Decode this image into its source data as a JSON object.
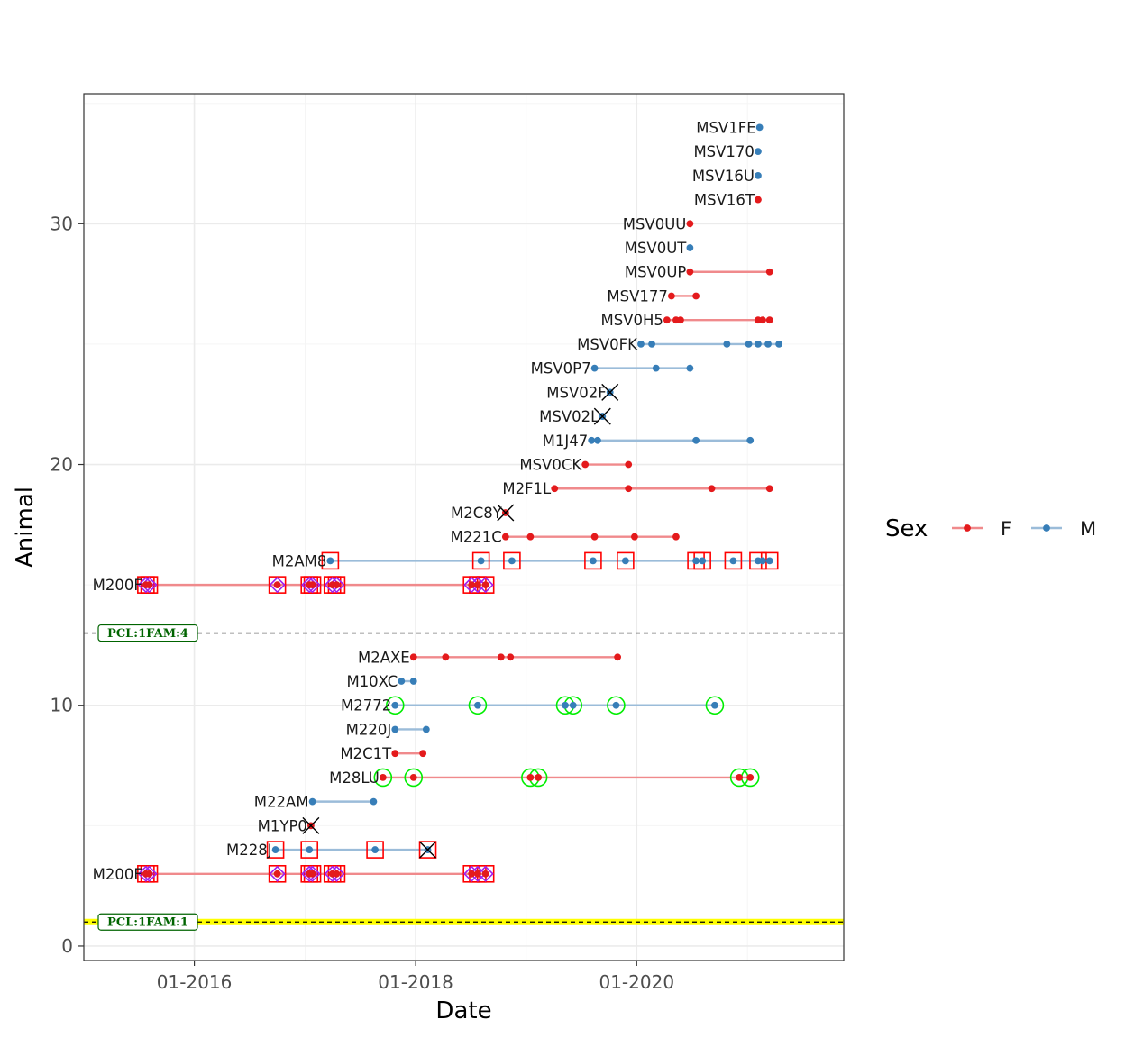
{
  "chart_data": {
    "type": "scatter",
    "xlabel": "Date",
    "ylabel": "Animal",
    "xlim": [
      "2015-01-01",
      "2021-11-15"
    ],
    "ylim": [
      -0.6,
      35.4
    ],
    "x_ticks": [
      {
        "date": "2016-01-01",
        "label": "01-2016"
      },
      {
        "date": "2018-01-01",
        "label": "01-2018"
      },
      {
        "date": "2020-01-01",
        "label": "01-2020"
      }
    ],
    "y_ticks": [
      {
        "value": 0,
        "label": "0"
      },
      {
        "value": 10,
        "label": "10"
      },
      {
        "value": 20,
        "label": "20"
      },
      {
        "value": 30,
        "label": "30"
      }
    ],
    "grid": true,
    "legend": {
      "title": "Sex",
      "position": "right",
      "items": [
        {
          "label": "F",
          "color": "#e41a1c"
        },
        {
          "label": "M",
          "color": "#377eb8"
        }
      ]
    },
    "separators": [
      {
        "y": 1,
        "label": "PCL:1FAM:1",
        "highlight_color": "#ffff00"
      },
      {
        "y": 13,
        "label": "PCL:1FAM:4"
      }
    ],
    "animals": [
      {
        "y": 3,
        "label": "M200F",
        "sex": "F",
        "dates": [
          "2015-07-25",
          "2015-08-05",
          "2016-10-01",
          "2017-01-15",
          "2017-01-25",
          "2017-04-01",
          "2017-04-15",
          "2018-07-05",
          "2018-07-25",
          "2018-08-20"
        ],
        "boxed": [
          "2015-07-25",
          "2015-08-05",
          "2016-10-01",
          "2017-01-15",
          "2017-01-25",
          "2017-04-01",
          "2017-04-15",
          "2018-07-05",
          "2018-07-25",
          "2018-08-20"
        ],
        "diamond": [
          "2015-07-25",
          "2015-08-05",
          "2016-10-01",
          "2017-01-15",
          "2017-01-25",
          "2017-04-01",
          "2017-04-15",
          "2018-07-05",
          "2018-07-25",
          "2018-08-20"
        ],
        "circled": [],
        "crossed": []
      },
      {
        "y": 4,
        "label": "M228J",
        "sex": "M",
        "dates": [
          "2016-09-25",
          "2017-01-15",
          "2017-08-20",
          "2018-02-10"
        ],
        "boxed": [
          "2016-09-25",
          "2017-01-15",
          "2017-08-20",
          "2018-02-10"
        ],
        "diamond": [],
        "circled": [],
        "crossed": [
          "2018-02-10"
        ]
      },
      {
        "y": 5,
        "label": "M1YP0",
        "sex": "F",
        "dates": [
          "2017-01-20"
        ],
        "boxed": [],
        "diamond": [],
        "circled": [],
        "crossed": [
          "2017-01-20"
        ]
      },
      {
        "y": 6,
        "label": "M22AM",
        "sex": "M",
        "dates": [
          "2017-01-25",
          "2017-08-15"
        ],
        "boxed": [],
        "diamond": [],
        "circled": [],
        "crossed": []
      },
      {
        "y": 7,
        "label": "M28LU",
        "sex": "F",
        "dates": [
          "2017-09-15",
          "2017-12-25",
          "2019-01-15",
          "2019-02-10",
          "2020-12-05",
          "2021-01-10"
        ],
        "boxed": [],
        "diamond": [],
        "circled": [
          "2017-09-15",
          "2017-12-25",
          "2019-01-15",
          "2019-02-10",
          "2020-12-05",
          "2021-01-10"
        ],
        "crossed": []
      },
      {
        "y": 8,
        "label": "M2C1T",
        "sex": "F",
        "dates": [
          "2017-10-25",
          "2018-01-25"
        ],
        "boxed": [],
        "diamond": [],
        "circled": [],
        "crossed": []
      },
      {
        "y": 9,
        "label": "M220J",
        "sex": "M",
        "dates": [
          "2017-10-25",
          "2018-02-05"
        ],
        "boxed": [],
        "diamond": [],
        "circled": [],
        "crossed": []
      },
      {
        "y": 10,
        "label": "M2772",
        "sex": "M",
        "dates": [
          "2017-10-25",
          "2018-07-25",
          "2019-05-10",
          "2019-06-05",
          "2019-10-25",
          "2020-09-15"
        ],
        "boxed": [],
        "diamond": [],
        "circled": [
          "2017-10-25",
          "2018-07-25",
          "2019-05-10",
          "2019-06-05",
          "2019-10-25",
          "2020-09-15"
        ],
        "crossed": []
      },
      {
        "y": 11,
        "label": "M10XC",
        "sex": "M",
        "dates": [
          "2017-11-15",
          "2017-12-25"
        ],
        "boxed": [],
        "diamond": [],
        "circled": [],
        "crossed": []
      },
      {
        "y": 12,
        "label": "M2AXE",
        "sex": "F",
        "dates": [
          "2017-12-25",
          "2018-04-10",
          "2018-10-10",
          "2018-11-10",
          "2019-10-30"
        ],
        "boxed": [],
        "diamond": [],
        "circled": [],
        "crossed": []
      },
      {
        "y": 15,
        "label": "M200F",
        "sex": "F",
        "dates": [
          "2015-07-25",
          "2015-08-05",
          "2016-10-01",
          "2017-01-15",
          "2017-01-25",
          "2017-04-01",
          "2017-04-15",
          "2018-07-05",
          "2018-07-25",
          "2018-08-20"
        ],
        "boxed": [
          "2015-07-25",
          "2015-08-05",
          "2016-10-01",
          "2017-01-15",
          "2017-01-25",
          "2017-04-01",
          "2017-04-15",
          "2018-07-05",
          "2018-07-25",
          "2018-08-20"
        ],
        "diamond": [
          "2015-07-25",
          "2015-08-05",
          "2016-10-01",
          "2017-01-15",
          "2017-01-25",
          "2017-04-01",
          "2017-04-15",
          "2018-07-05",
          "2018-07-25",
          "2018-08-20"
        ],
        "circled": [],
        "crossed": []
      },
      {
        "y": 16,
        "label": "M2AM8",
        "sex": "M",
        "dates": [
          "2017-03-25",
          "2018-08-05",
          "2018-11-15",
          "2019-08-10",
          "2019-11-25",
          "2020-07-15",
          "2020-08-05",
          "2020-11-15",
          "2021-02-05",
          "2021-02-20",
          "2021-03-15"
        ],
        "boxed": [
          "2017-03-25",
          "2018-08-05",
          "2018-11-15",
          "2019-08-10",
          "2019-11-25",
          "2020-07-15",
          "2020-08-05",
          "2020-11-15",
          "2021-02-05",
          "2021-03-15"
        ],
        "diamond": [],
        "circled": [],
        "crossed": []
      },
      {
        "y": 17,
        "label": "M221C",
        "sex": "F",
        "dates": [
          "2018-10-25",
          "2019-01-15",
          "2019-08-15",
          "2019-12-25",
          "2020-05-10"
        ],
        "boxed": [],
        "diamond": [],
        "circled": [],
        "crossed": []
      },
      {
        "y": 18,
        "label": "M2C8Y",
        "sex": "F",
        "dates": [
          "2018-10-25"
        ],
        "boxed": [],
        "diamond": [],
        "circled": [],
        "crossed": [
          "2018-10-25"
        ]
      },
      {
        "y": 19,
        "label": "M2F1L",
        "sex": "F",
        "dates": [
          "2019-04-05",
          "2019-12-05",
          "2020-09-05",
          "2021-03-15"
        ],
        "boxed": [],
        "diamond": [],
        "circled": [],
        "crossed": []
      },
      {
        "y": 20,
        "label": "MSV0CK",
        "sex": "F",
        "dates": [
          "2019-07-15",
          "2019-12-05"
        ],
        "boxed": [],
        "diamond": [],
        "circled": [],
        "crossed": []
      },
      {
        "y": 21,
        "label": "M1J47",
        "sex": "M",
        "dates": [
          "2019-08-05",
          "2019-08-25",
          "2020-07-15",
          "2021-01-10"
        ],
        "boxed": [],
        "diamond": [],
        "circled": [],
        "crossed": []
      },
      {
        "y": 22,
        "label": "MSV02L",
        "sex": "M",
        "dates": [
          "2019-09-10"
        ],
        "boxed": [],
        "diamond": [],
        "circled": [],
        "crossed": [
          "2019-09-10"
        ]
      },
      {
        "y": 23,
        "label": "MSV02F",
        "sex": "M",
        "dates": [
          "2019-10-05"
        ],
        "boxed": [],
        "diamond": [],
        "circled": [],
        "crossed": [
          "2019-10-05"
        ]
      },
      {
        "y": 24,
        "label": "MSV0P7",
        "sex": "M",
        "dates": [
          "2019-08-15",
          "2020-03-05",
          "2020-06-25"
        ],
        "boxed": [],
        "diamond": [],
        "circled": [],
        "crossed": []
      },
      {
        "y": 25,
        "label": "MSV0FK",
        "sex": "M",
        "dates": [
          "2020-01-15",
          "2020-02-20",
          "2020-10-25",
          "2021-01-05",
          "2021-02-05",
          "2021-03-10",
          "2021-04-15"
        ],
        "boxed": [],
        "diamond": [],
        "circled": [],
        "crossed": []
      },
      {
        "y": 26,
        "label": "MSV0H5",
        "sex": "F",
        "dates": [
          "2020-04-10",
          "2020-05-10",
          "2020-05-25",
          "2021-02-05",
          "2021-02-20",
          "2021-03-15"
        ],
        "boxed": [],
        "diamond": [],
        "circled": [],
        "crossed": []
      },
      {
        "y": 27,
        "label": "MSV177",
        "sex": "F",
        "dates": [
          "2020-04-25",
          "2020-07-15"
        ],
        "boxed": [],
        "diamond": [],
        "circled": [],
        "crossed": []
      },
      {
        "y": 28,
        "label": "MSV0UP",
        "sex": "F",
        "dates": [
          "2020-06-25",
          "2021-03-15"
        ],
        "boxed": [],
        "diamond": [],
        "circled": [],
        "crossed": []
      },
      {
        "y": 29,
        "label": "MSV0UT",
        "sex": "M",
        "dates": [
          "2020-06-25"
        ],
        "boxed": [],
        "diamond": [],
        "circled": [],
        "crossed": []
      },
      {
        "y": 30,
        "label": "MSV0UU",
        "sex": "F",
        "dates": [
          "2020-06-25"
        ],
        "boxed": [],
        "diamond": [],
        "circled": [],
        "crossed": []
      },
      {
        "y": 31,
        "label": "MSV16T",
        "sex": "F",
        "dates": [
          "2021-02-05"
        ],
        "boxed": [],
        "diamond": [],
        "circled": [],
        "crossed": []
      },
      {
        "y": 32,
        "label": "MSV16U",
        "sex": "M",
        "dates": [
          "2021-02-05"
        ],
        "boxed": [],
        "diamond": [],
        "circled": [],
        "crossed": []
      },
      {
        "y": 33,
        "label": "MSV170",
        "sex": "M",
        "dates": [
          "2021-02-05"
        ],
        "boxed": [],
        "diamond": [],
        "circled": [],
        "crossed": []
      },
      {
        "y": 34,
        "label": "MSV1FE",
        "sex": "M",
        "dates": [
          "2021-02-10"
        ],
        "boxed": [],
        "diamond": [],
        "circled": [],
        "crossed": []
      }
    ],
    "colors": {
      "F": "#e41a1c",
      "M": "#377eb8",
      "F_line": "#f08a8c",
      "M_line": "#9bbcd9",
      "box": "#ff0000",
      "diamond": "#a020f0",
      "circle": "#00ee00",
      "cross": "#000000",
      "panel_border": "#333333",
      "grid_major": "#ebebeb",
      "grid_minor": "#f5f5f5"
    }
  }
}
